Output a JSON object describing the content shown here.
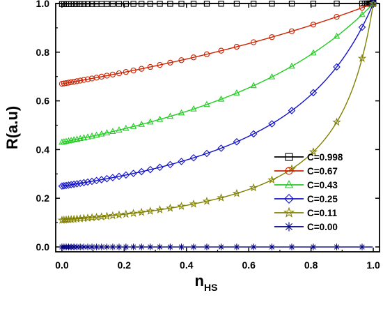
{
  "chart_data": {
    "type": "line",
    "title": "",
    "xlabel": {
      "main": "n",
      "sub": "HS"
    },
    "ylabel": "R(a.u)",
    "xlim": [
      -0.02,
      1.02
    ],
    "ylim": [
      -0.02,
      1.0
    ],
    "x_ticks": [
      "0.0",
      "0.2",
      "0.4",
      "0.6",
      "0.8",
      "1.0"
    ],
    "y_ticks": [
      "0.0",
      "0.2",
      "0.4",
      "0.6",
      "0.8",
      "1.0"
    ],
    "grid": false,
    "legend_position": "bottom-right",
    "series": [
      {
        "name": "C=0.998",
        "C": 0.998,
        "color": "#000000",
        "marker": "square"
      },
      {
        "name": "C=0.67",
        "C": 0.67,
        "color": "#cc2200",
        "marker": "circle"
      },
      {
        "name": "C=0.43",
        "C": 0.43,
        "color": "#22cc22",
        "marker": "triangle"
      },
      {
        "name": "C=0.25",
        "C": 0.25,
        "color": "#1111cc",
        "marker": "diamond"
      },
      {
        "name": "C=0.11",
        "C": 0.11,
        "color": "#808000",
        "marker": "star"
      },
      {
        "name": "C=0.00",
        "C": 0.0,
        "color": "#000080",
        "marker": "asterisk"
      }
    ]
  }
}
